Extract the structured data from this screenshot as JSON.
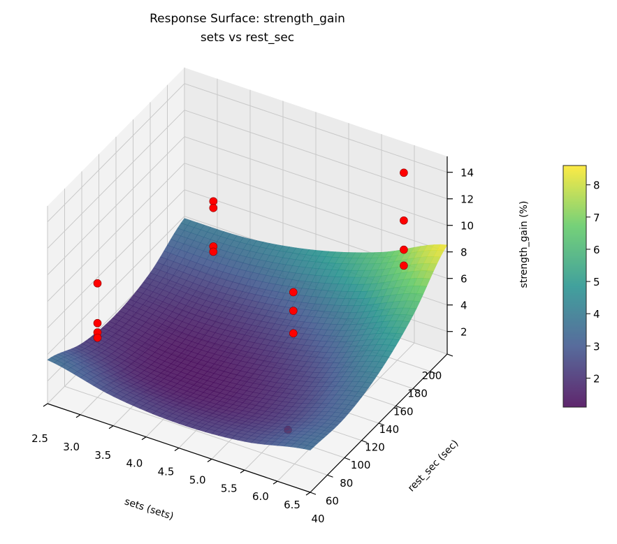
{
  "chart_data": {
    "type": "surface",
    "title": "Response Surface: strength_gain",
    "subtitle": "sets vs rest_sec",
    "xlabel": "sets (sets)",
    "ylabel": "rest_sec (sec)",
    "zlabel": "strength_gain (%)",
    "xlim": [
      2.5,
      6.5
    ],
    "ylim": [
      40,
      200
    ],
    "zlim": [
      0.3,
      15.2
    ],
    "x_ticks": [
      "2.5",
      "3.0",
      "3.5",
      "4.0",
      "4.5",
      "5.0",
      "5.5",
      "6.0",
      "6.5"
    ],
    "y_ticks": [
      "40",
      "60",
      "80",
      "100",
      "120",
      "140",
      "160",
      "180",
      "200"
    ],
    "z_ticks": [
      "2",
      "4",
      "6",
      "8",
      "10",
      "12",
      "14"
    ],
    "grid": true,
    "colormap": "viridis",
    "colorbar": {
      "range": [
        1.1,
        8.6
      ],
      "ticks": [
        "2",
        "3",
        "4",
        "5",
        "6",
        "7",
        "8"
      ],
      "placement": "right"
    },
    "surface": {
      "x": [
        2.5,
        3.5,
        4.5,
        5.5,
        6.5
      ],
      "y": [
        40,
        80,
        120,
        160,
        200
      ],
      "z": [
        [
          3.6,
          2.22,
          1.8,
          2.34,
          3.84
        ],
        [
          2.52,
          1.44,
          1.32,
          2.16,
          3.96
        ],
        [
          2.14,
          1.36,
          1.54,
          2.68,
          4.78
        ],
        [
          2.46,
          1.98,
          2.46,
          3.9,
          6.3
        ],
        [
          3.48,
          3.3,
          4.08,
          5.82,
          8.52
        ]
      ]
    },
    "scatter": {
      "color": "#ff0000",
      "points": [
        {
          "x": 3.0,
          "y": 60,
          "z": 8.9
        },
        {
          "x": 3.0,
          "y": 60,
          "z": 5.9
        },
        {
          "x": 3.0,
          "y": 60,
          "z": 5.2
        },
        {
          "x": 3.0,
          "y": 60,
          "z": 4.8
        },
        {
          "x": 3.2,
          "y": 180,
          "z": 7.6
        },
        {
          "x": 3.2,
          "y": 180,
          "z": 7.1
        },
        {
          "x": 3.2,
          "y": 180,
          "z": 4.2
        },
        {
          "x": 3.2,
          "y": 180,
          "z": 3.8
        },
        {
          "x": 5.2,
          "y": 120,
          "z": 8.0
        },
        {
          "x": 5.2,
          "y": 120,
          "z": 6.6
        },
        {
          "x": 5.2,
          "y": 120,
          "z": 4.9
        },
        {
          "x": 5.9,
          "y": 60,
          "z": 2.7
        },
        {
          "x": 6.1,
          "y": 180,
          "z": 14.6
        },
        {
          "x": 6.1,
          "y": 180,
          "z": 11.0
        },
        {
          "x": 6.1,
          "y": 180,
          "z": 8.8
        },
        {
          "x": 6.1,
          "y": 180,
          "z": 7.6
        }
      ]
    }
  }
}
